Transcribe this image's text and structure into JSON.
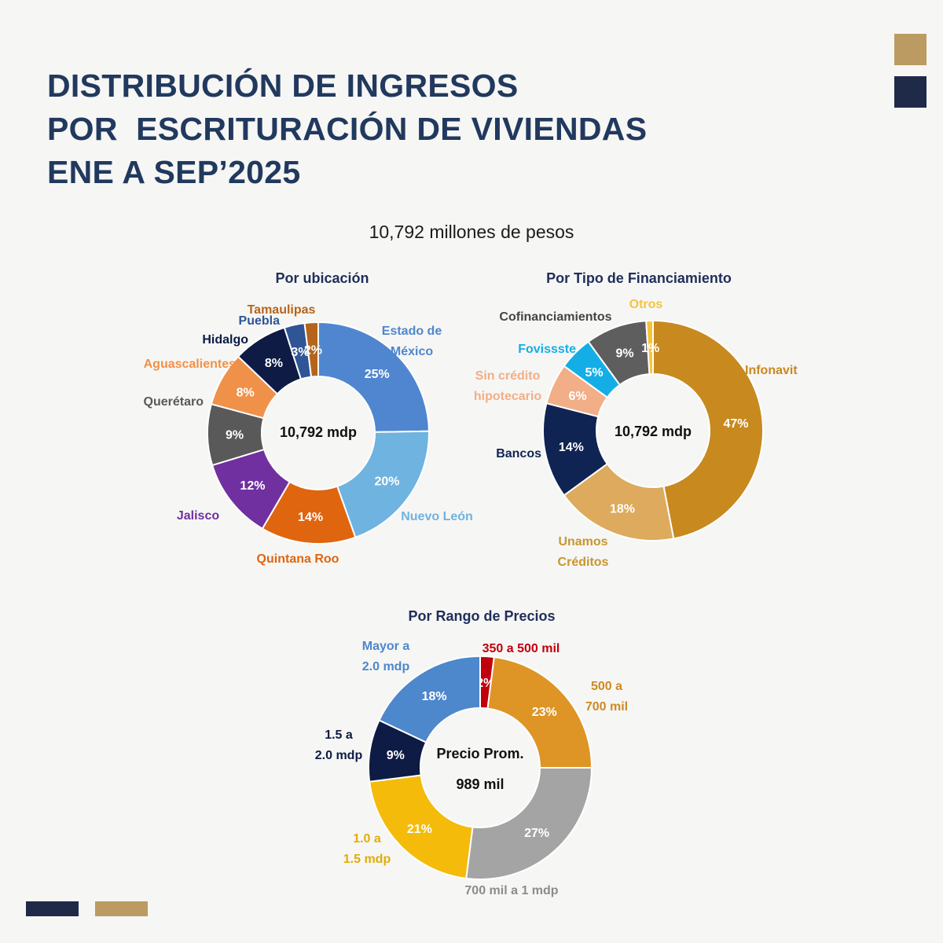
{
  "title": {
    "line1": "DISTRIBUCIÓN DE INGRESOS",
    "line2": "POR  ESCRITURACIÓN DE VIVIENDAS",
    "line3": "ENE A SEP’2025"
  },
  "subtitle": "10,792 millones de pesos",
  "colors": {
    "title": "#21395e",
    "gold": "#bb9b62",
    "navy": "#1f2a48"
  },
  "chart_data": [
    {
      "type": "pie",
      "title": "Por ubicación",
      "center_label": [
        "10,792 mdp"
      ],
      "slices": [
        {
          "name": "Estado de México",
          "label_lines": [
            "Estado de",
            "México"
          ],
          "value": 25,
          "label": "25%",
          "color": "#4f86cf",
          "label_color": "#4f86cf"
        },
        {
          "name": "Nuevo León",
          "label_lines": [
            "Nuevo León"
          ],
          "value": 20,
          "label": "20%",
          "color": "#6fb3e0",
          "label_color": "#6fb3e0"
        },
        {
          "name": "Quintana Roo",
          "label_lines": [
            "Quintana Roo"
          ],
          "value": 14,
          "label": "14%",
          "color": "#e0650f",
          "label_color": "#e0650f"
        },
        {
          "name": "Jalisco",
          "label_lines": [
            "Jalisco"
          ],
          "value": 12,
          "label": "12%",
          "color": "#7030a0",
          "label_color": "#7030a0"
        },
        {
          "name": "Querétaro",
          "label_lines": [
            "Querétaro"
          ],
          "value": 9,
          "label": "9%",
          "color": "#595959",
          "label_color": "#595959"
        },
        {
          "name": "Aguascalientes",
          "label_lines": [
            "Aguascalientes"
          ],
          "value": 8,
          "label": "8%",
          "color": "#f0914a",
          "label_color": "#f0914a"
        },
        {
          "name": "Hidalgo",
          "label_lines": [
            "Hidalgo"
          ],
          "value": 8,
          "label": "8%",
          "color": "#0d1b45",
          "label_color": "#0d1b45"
        },
        {
          "name": "Puebla",
          "label_lines": [
            "Puebla"
          ],
          "value": 3,
          "label": "3%",
          "color": "#2f5596",
          "label_color": "#2f5596"
        },
        {
          "name": "Tamaulipas",
          "label_lines": [
            "Tamaulipas"
          ],
          "value": 2,
          "label": "2%",
          "color": "#b4651b",
          "label_color": "#b4651b"
        }
      ]
    },
    {
      "type": "pie",
      "title": "Por Tipo de Financiamiento",
      "center_label": [
        "10,792 mdp"
      ],
      "slices": [
        {
          "name": "Infonavit",
          "label_lines": [
            "Infonavit"
          ],
          "value": 47,
          "label": "47%",
          "color": "#c8891f",
          "label_color": "#c8891f"
        },
        {
          "name": "Unamos Créditos",
          "label_lines": [
            "Unamos",
            "Créditos"
          ],
          "value": 18,
          "label": "18%",
          "color": "#ddaa5e",
          "label_color": "#c8962e"
        },
        {
          "name": "Bancos",
          "label_lines": [
            "Bancos"
          ],
          "value": 14,
          "label": "14%",
          "color": "#102454",
          "label_color": "#102454"
        },
        {
          "name": "Sin crédito hipotecario",
          "label_lines": [
            "Sin crédito",
            "hipotecario"
          ],
          "value": 6,
          "label": "6%",
          "color": "#f2ae86",
          "label_color": "#f2ae86"
        },
        {
          "name": "Fovissste",
          "label_lines": [
            "Fovissste"
          ],
          "value": 5,
          "label": "5%",
          "color": "#13aee6",
          "label_color": "#13aee6"
        },
        {
          "name": "Cofinanciamientos",
          "label_lines": [
            "Cofinanciamientos"
          ],
          "value": 9,
          "label": "9%",
          "color": "#5e5e5e",
          "label_color": "#444444"
        },
        {
          "name": "Otros",
          "label_lines": [
            "Otros"
          ],
          "value": 1,
          "label": "1%",
          "color": "#f6c43b",
          "label_color": "#f6c43b"
        }
      ]
    },
    {
      "type": "pie",
      "title": "Por Rango de Precios",
      "center_label": [
        "Precio Prom.",
        "989 mil"
      ],
      "slices": [
        {
          "name": "350 a 500 mil",
          "label_lines": [
            "350 a 500 mil"
          ],
          "value": 2,
          "label": "2%",
          "color": "#c0000d",
          "label_color": "#c0000d"
        },
        {
          "name": "500 a 700 mil",
          "label_lines": [
            "500 a",
            "700 mil"
          ],
          "value": 23,
          "label": "23%",
          "color": "#de9526",
          "label_color": "#d08a22"
        },
        {
          "name": "700 mil a 1 mdp",
          "label_lines": [
            "700 mil a 1 mdp"
          ],
          "value": 27,
          "label": "27%",
          "color": "#a4a4a4",
          "label_color": "#8c8c8c"
        },
        {
          "name": "1.0 a 1.5 mdp",
          "label_lines": [
            "1.0 a",
            "1.5 mdp"
          ],
          "value": 21,
          "label": "21%",
          "color": "#f4bb0b",
          "label_color": "#e2ac08"
        },
        {
          "name": "1.5 a 2.0 mdp",
          "label_lines": [
            "1.5 a",
            "2.0 mdp"
          ],
          "value": 9,
          "label": "9%",
          "color": "#0d1b45",
          "label_color": "#0d1b45"
        },
        {
          "name": "Mayor a 2.0 mdp",
          "label_lines": [
            "Mayor a",
            "2.0 mdp"
          ],
          "value": 18,
          "label": "18%",
          "color": "#4d87cc",
          "label_color": "#4d87cc"
        }
      ]
    }
  ]
}
